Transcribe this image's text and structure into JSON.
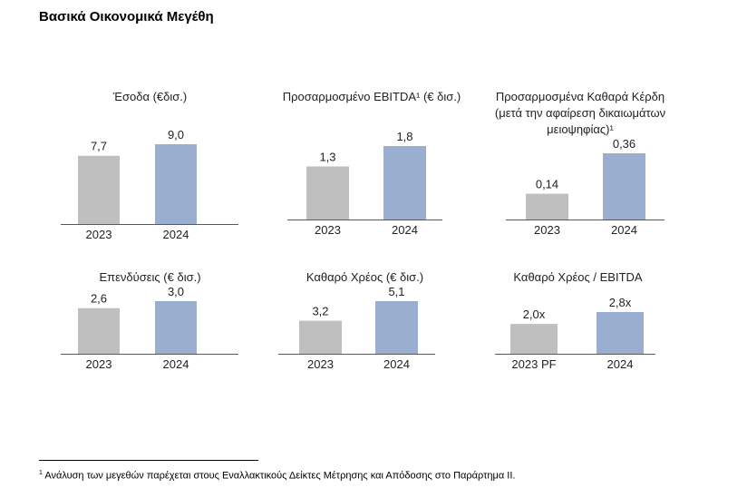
{
  "page_title": "Βασικά Οικονομικά Μεγέθη",
  "colors": {
    "prior": "#bfbfbf",
    "current": "#9aafcf",
    "axis": "#595959",
    "text": "#222222"
  },
  "chart_data": [
    {
      "type": "bar",
      "title": "Έσοδα (€δισ.)",
      "categories": [
        "2023",
        "2024"
      ],
      "values": [
        7.7,
        9.0
      ],
      "value_labels": [
        "7,7",
        "9,0"
      ]
    },
    {
      "type": "bar",
      "title": "Προσαρμοσμένο EBITDA¹ (€ δισ.)",
      "categories": [
        "2023",
        "2024"
      ],
      "values": [
        1.3,
        1.8
      ],
      "value_labels": [
        "1,3",
        "1,8"
      ]
    },
    {
      "type": "bar",
      "title": "Προσαρμοσμένα Καθαρά Κέρδη (μετά την αφαίρεση δικαιωμάτων μειοψηφίας)¹",
      "title_lines": [
        "Προσαρμοσμένα Καθαρά Κέρδη",
        "(μετά την αφαίρεση δικαιωμάτων",
        "μειοψηφίας)¹"
      ],
      "categories": [
        "2023",
        "2024"
      ],
      "values": [
        0.14,
        0.36
      ],
      "value_labels": [
        "0,14",
        "0,36"
      ]
    },
    {
      "type": "bar",
      "title": "Επενδύσεις (€ δισ.)",
      "categories": [
        "2023",
        "2024"
      ],
      "values": [
        2.6,
        3.0
      ],
      "value_labels": [
        "2,6",
        "3,0"
      ]
    },
    {
      "type": "bar",
      "title": "Καθαρό Χρέος (€ δισ.)",
      "categories": [
        "2023",
        "2024"
      ],
      "values": [
        3.2,
        5.1
      ],
      "value_labels": [
        "3,2",
        "5,1"
      ]
    },
    {
      "type": "bar",
      "title": "Καθαρό Χρέος / EBITDA",
      "categories": [
        "2023 PF",
        "2024"
      ],
      "values": [
        2.0,
        2.8
      ],
      "value_labels": [
        "2,0x",
        "2,8x"
      ]
    }
  ],
  "footnote": {
    "marker": "1",
    "text": "Ανάλυση των μεγεθών παρέχεται στους Εναλλακτικούς Δείκτες Μέτρησης και Απόδοσης στο Παράρτημα ΙΙ."
  }
}
